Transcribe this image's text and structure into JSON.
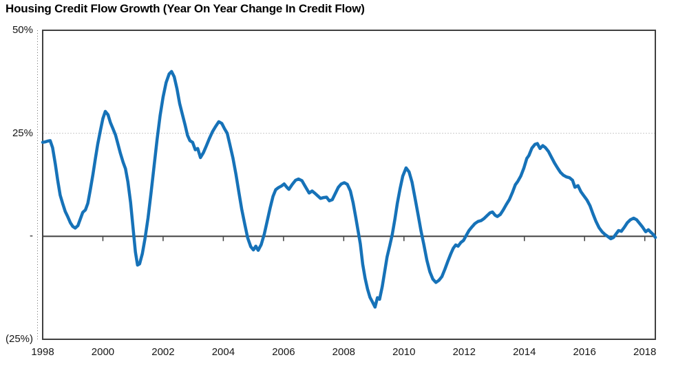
{
  "chart_data": {
    "type": "line",
    "title": "Housing Credit Flow Growth (Year On Year Change In Credit Flow)",
    "xlabel": "",
    "ylabel": "",
    "legend_position": "none",
    "grid": "single dotted horizontal gridline at 25%",
    "x_axis": {
      "min": 1998,
      "max": 2018.35,
      "ticks": [
        {
          "value": 1998,
          "label": "1998"
        },
        {
          "value": 2000,
          "label": "2000"
        },
        {
          "value": 2002,
          "label": "2002"
        },
        {
          "value": 2004,
          "label": "2004"
        },
        {
          "value": 2006,
          "label": "2006"
        },
        {
          "value": 2008,
          "label": "2008"
        },
        {
          "value": 2010,
          "label": "2010"
        },
        {
          "value": 2012,
          "label": "2012"
        },
        {
          "value": 2014,
          "label": "2014"
        },
        {
          "value": 2016,
          "label": "2016"
        },
        {
          "value": 2018,
          "label": "2018"
        }
      ]
    },
    "y_axis": {
      "min": -25,
      "max": 50,
      "ticks": [
        {
          "value": 50,
          "label": "50%"
        },
        {
          "value": 25,
          "label": "25%"
        },
        {
          "value": 0,
          "label": "-"
        },
        {
          "value": -25,
          "label": "(25%)"
        }
      ],
      "gridlines": [
        25
      ],
      "zero_axis": true
    },
    "series": [
      {
        "name": "Housing credit flow growth (YoY % change)",
        "color": "#1672B8",
        "points": [
          [
            1998.0,
            22.8
          ],
          [
            1998.08,
            22.9
          ],
          [
            1998.17,
            23.1
          ],
          [
            1998.25,
            23.2
          ],
          [
            1998.33,
            21.5
          ],
          [
            1998.42,
            17.5
          ],
          [
            1998.5,
            13.5
          ],
          [
            1998.58,
            10.0
          ],
          [
            1998.67,
            7.8
          ],
          [
            1998.75,
            6.0
          ],
          [
            1998.83,
            4.8
          ],
          [
            1998.92,
            3.3
          ],
          [
            1999.0,
            2.4
          ],
          [
            1999.08,
            2.0
          ],
          [
            1999.17,
            2.6
          ],
          [
            1999.25,
            4.2
          ],
          [
            1999.33,
            5.8
          ],
          [
            1999.42,
            6.4
          ],
          [
            1999.5,
            8.0
          ],
          [
            1999.58,
            11.2
          ],
          [
            1999.67,
            15.0
          ],
          [
            1999.75,
            18.8
          ],
          [
            1999.83,
            22.4
          ],
          [
            1999.92,
            25.8
          ],
          [
            2000.0,
            28.6
          ],
          [
            2000.08,
            30.3
          ],
          [
            2000.17,
            29.5
          ],
          [
            2000.25,
            27.6
          ],
          [
            2000.33,
            26.2
          ],
          [
            2000.42,
            24.6
          ],
          [
            2000.5,
            22.4
          ],
          [
            2000.58,
            20.2
          ],
          [
            2000.67,
            18.0
          ],
          [
            2000.75,
            16.4
          ],
          [
            2000.83,
            13.2
          ],
          [
            2000.92,
            8.2
          ],
          [
            2001.0,
            2.2
          ],
          [
            2001.08,
            -3.8
          ],
          [
            2001.15,
            -7.0
          ],
          [
            2001.22,
            -6.7
          ],
          [
            2001.31,
            -4.2
          ],
          [
            2001.4,
            -0.5
          ],
          [
            2001.5,
            4.5
          ],
          [
            2001.6,
            10.5
          ],
          [
            2001.7,
            17.0
          ],
          [
            2001.8,
            23.5
          ],
          [
            2001.9,
            29.3
          ],
          [
            2002.0,
            33.8
          ],
          [
            2002.1,
            37.3
          ],
          [
            2002.2,
            39.4
          ],
          [
            2002.28,
            40.0
          ],
          [
            2002.37,
            38.7
          ],
          [
            2002.46,
            35.8
          ],
          [
            2002.55,
            32.2
          ],
          [
            2002.64,
            29.6
          ],
          [
            2002.73,
            27.0
          ],
          [
            2002.81,
            24.5
          ],
          [
            2002.89,
            23.2
          ],
          [
            2002.98,
            22.8
          ],
          [
            2003.07,
            21.0
          ],
          [
            2003.15,
            21.3
          ],
          [
            2003.24,
            19.1
          ],
          [
            2003.34,
            20.3
          ],
          [
            2003.44,
            22.0
          ],
          [
            2003.54,
            23.8
          ],
          [
            2003.64,
            25.4
          ],
          [
            2003.74,
            26.6
          ],
          [
            2003.85,
            27.8
          ],
          [
            2003.95,
            27.4
          ],
          [
            2004.04,
            26.1
          ],
          [
            2004.13,
            25.0
          ],
          [
            2004.22,
            22.2
          ],
          [
            2004.32,
            19.0
          ],
          [
            2004.42,
            15.0
          ],
          [
            2004.52,
            10.6
          ],
          [
            2004.61,
            6.6
          ],
          [
            2004.71,
            3.0
          ],
          [
            2004.81,
            -0.4
          ],
          [
            2004.91,
            -2.5
          ],
          [
            2005.0,
            -3.3
          ],
          [
            2005.08,
            -2.4
          ],
          [
            2005.16,
            -3.4
          ],
          [
            2005.26,
            -2.0
          ],
          [
            2005.36,
            0.5
          ],
          [
            2005.46,
            3.8
          ],
          [
            2005.56,
            7.0
          ],
          [
            2005.65,
            9.7
          ],
          [
            2005.74,
            11.3
          ],
          [
            2005.83,
            11.8
          ],
          [
            2005.93,
            12.2
          ],
          [
            2006.02,
            12.7
          ],
          [
            2006.11,
            11.9
          ],
          [
            2006.18,
            11.4
          ],
          [
            2006.29,
            12.6
          ],
          [
            2006.4,
            13.6
          ],
          [
            2006.5,
            13.9
          ],
          [
            2006.61,
            13.5
          ],
          [
            2006.72,
            12.1
          ],
          [
            2006.85,
            10.5
          ],
          [
            2006.95,
            11.0
          ],
          [
            2007.05,
            10.4
          ],
          [
            2007.14,
            9.8
          ],
          [
            2007.23,
            9.2
          ],
          [
            2007.33,
            9.4
          ],
          [
            2007.43,
            9.5
          ],
          [
            2007.52,
            8.6
          ],
          [
            2007.62,
            8.9
          ],
          [
            2007.72,
            10.4
          ],
          [
            2007.82,
            11.9
          ],
          [
            2007.92,
            12.7
          ],
          [
            2008.02,
            13.0
          ],
          [
            2008.12,
            12.6
          ],
          [
            2008.22,
            11.0
          ],
          [
            2008.31,
            8.2
          ],
          [
            2008.4,
            4.6
          ],
          [
            2008.48,
            1.2
          ],
          [
            2008.55,
            -1.8
          ],
          [
            2008.63,
            -6.8
          ],
          [
            2008.71,
            -10.2
          ],
          [
            2008.79,
            -12.8
          ],
          [
            2008.87,
            -14.8
          ],
          [
            2008.95,
            -15.9
          ],
          [
            2009.04,
            -17.2
          ],
          [
            2009.12,
            -14.9
          ],
          [
            2009.19,
            -15.3
          ],
          [
            2009.28,
            -12.2
          ],
          [
            2009.36,
            -8.6
          ],
          [
            2009.44,
            -5.0
          ],
          [
            2009.53,
            -2.2
          ],
          [
            2009.61,
            0.4
          ],
          [
            2009.7,
            4.2
          ],
          [
            2009.78,
            8.0
          ],
          [
            2009.87,
            11.5
          ],
          [
            2009.96,
            14.6
          ],
          [
            2010.07,
            16.6
          ],
          [
            2010.17,
            15.6
          ],
          [
            2010.27,
            13.1
          ],
          [
            2010.37,
            9.2
          ],
          [
            2010.47,
            5.2
          ],
          [
            2010.57,
            1.2
          ],
          [
            2010.66,
            -2.0
          ],
          [
            2010.76,
            -5.8
          ],
          [
            2010.86,
            -8.6
          ],
          [
            2010.96,
            -10.4
          ],
          [
            2011.06,
            -11.2
          ],
          [
            2011.16,
            -10.7
          ],
          [
            2011.26,
            -9.8
          ],
          [
            2011.36,
            -8.0
          ],
          [
            2011.46,
            -6.0
          ],
          [
            2011.56,
            -4.2
          ],
          [
            2011.64,
            -2.9
          ],
          [
            2011.72,
            -2.1
          ],
          [
            2011.8,
            -2.4
          ],
          [
            2011.89,
            -1.5
          ],
          [
            2011.98,
            -1.0
          ],
          [
            2012.07,
            0.2
          ],
          [
            2012.16,
            1.4
          ],
          [
            2012.26,
            2.3
          ],
          [
            2012.36,
            3.1
          ],
          [
            2012.46,
            3.6
          ],
          [
            2012.56,
            3.8
          ],
          [
            2012.66,
            4.3
          ],
          [
            2012.76,
            5.0
          ],
          [
            2012.86,
            5.7
          ],
          [
            2012.94,
            5.9
          ],
          [
            2013.03,
            5.1
          ],
          [
            2013.1,
            4.8
          ],
          [
            2013.2,
            5.3
          ],
          [
            2013.3,
            6.4
          ],
          [
            2013.4,
            7.7
          ],
          [
            2013.5,
            8.9
          ],
          [
            2013.6,
            10.6
          ],
          [
            2013.7,
            12.5
          ],
          [
            2013.78,
            13.3
          ],
          [
            2013.88,
            14.6
          ],
          [
            2013.98,
            16.5
          ],
          [
            2014.08,
            18.9
          ],
          [
            2014.15,
            19.6
          ],
          [
            2014.25,
            21.4
          ],
          [
            2014.35,
            22.3
          ],
          [
            2014.43,
            22.5
          ],
          [
            2014.52,
            21.3
          ],
          [
            2014.61,
            22.0
          ],
          [
            2014.7,
            21.5
          ],
          [
            2014.8,
            20.6
          ],
          [
            2014.9,
            19.2
          ],
          [
            2015.0,
            17.8
          ],
          [
            2015.1,
            16.6
          ],
          [
            2015.2,
            15.5
          ],
          [
            2015.3,
            14.8
          ],
          [
            2015.4,
            14.4
          ],
          [
            2015.5,
            14.2
          ],
          [
            2015.6,
            13.6
          ],
          [
            2015.68,
            11.9
          ],
          [
            2015.78,
            12.3
          ],
          [
            2015.88,
            10.8
          ],
          [
            2015.98,
            9.8
          ],
          [
            2016.08,
            8.8
          ],
          [
            2016.18,
            7.4
          ],
          [
            2016.28,
            5.4
          ],
          [
            2016.38,
            3.6
          ],
          [
            2016.48,
            2.1
          ],
          [
            2016.58,
            1.1
          ],
          [
            2016.68,
            0.4
          ],
          [
            2016.78,
            -0.1
          ],
          [
            2016.87,
            -0.6
          ],
          [
            2016.96,
            -0.3
          ],
          [
            2017.05,
            0.6
          ],
          [
            2017.13,
            1.4
          ],
          [
            2017.22,
            1.2
          ],
          [
            2017.32,
            2.2
          ],
          [
            2017.42,
            3.3
          ],
          [
            2017.52,
            4.0
          ],
          [
            2017.63,
            4.4
          ],
          [
            2017.73,
            4.0
          ],
          [
            2017.83,
            3.1
          ],
          [
            2017.93,
            2.2
          ],
          [
            2018.03,
            1.1
          ],
          [
            2018.12,
            1.6
          ],
          [
            2018.21,
            0.9
          ],
          [
            2018.3,
            0.3
          ],
          [
            2018.35,
            -0.3
          ]
        ]
      }
    ],
    "colors": {
      "line": "#1672B8",
      "axis": "#3F3F3F",
      "gridline": "#C9C9C9",
      "minor_tick_line": "#6E6E6E",
      "background": "#FFFFFF",
      "text": "#000000"
    }
  }
}
